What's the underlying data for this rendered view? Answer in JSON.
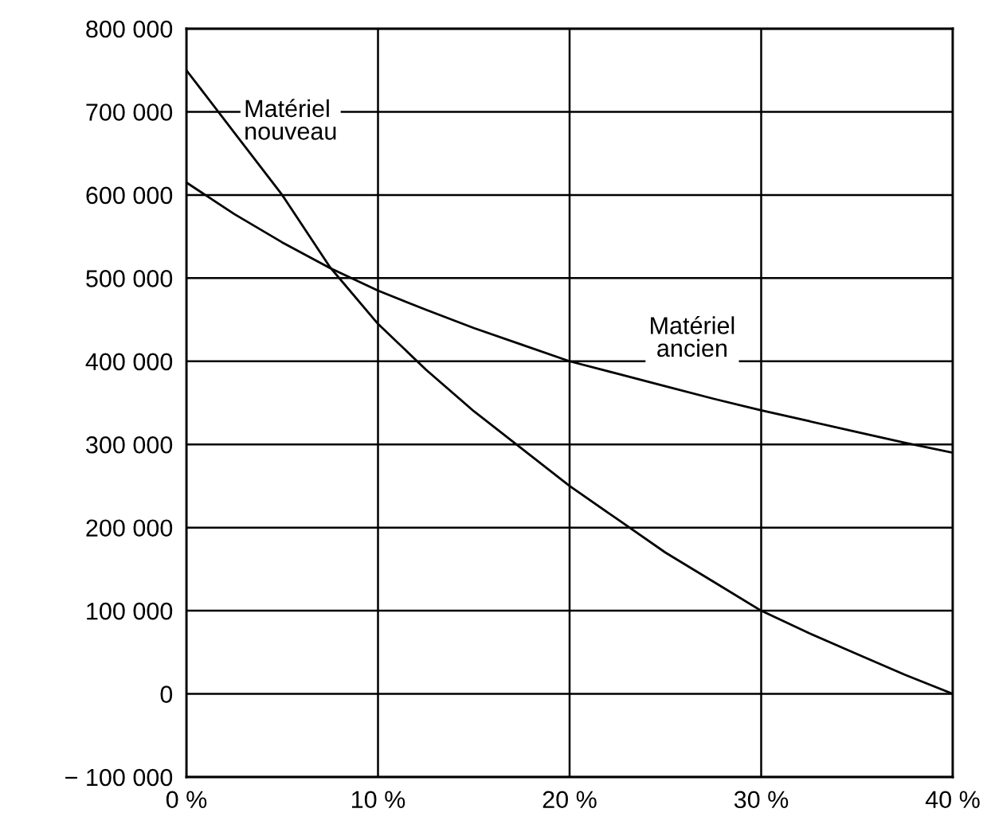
{
  "chart_data": {
    "type": "line",
    "x": [
      0,
      2.5,
      5,
      7.5,
      10,
      12.5,
      15,
      17.5,
      20,
      22.5,
      25,
      27.5,
      30,
      32.5,
      35,
      37.5,
      40
    ],
    "series": [
      {
        "name": "Matériel nouveau",
        "color": "#000000",
        "values": [
          750000,
          675000,
          600000,
          513000,
          445000,
          390000,
          340000,
          295000,
          250000,
          210000,
          170000,
          135000,
          100000,
          73000,
          48000,
          23000,
          0
        ]
      },
      {
        "name": "Matériel ancien",
        "color": "#000000",
        "values": [
          615000,
          577000,
          543000,
          512000,
          485000,
          462000,
          440000,
          420000,
          400000,
          385000,
          370000,
          355000,
          341000,
          328000,
          315000,
          302000,
          290000
        ]
      }
    ],
    "xlim": [
      0,
      40
    ],
    "xticks": [
      {
        "value": 0,
        "label": "0 %"
      },
      {
        "value": 10,
        "label": "10 %"
      },
      {
        "value": 20,
        "label": "20 %"
      },
      {
        "value": 30,
        "label": "30 %"
      },
      {
        "value": 40,
        "label": "40 %"
      }
    ],
    "ylim": [
      -100000,
      800000
    ],
    "yticks": [
      {
        "value": -100000,
        "label": "− 100 000"
      },
      {
        "value": 0,
        "label": "0"
      },
      {
        "value": 100000,
        "label": "100 000"
      },
      {
        "value": 200000,
        "label": "200 000"
      },
      {
        "value": 300000,
        "label": "300 000"
      },
      {
        "value": 400000,
        "label": "400 000"
      },
      {
        "value": 500000,
        "label": "500 000"
      },
      {
        "value": 600000,
        "label": "600 000"
      },
      {
        "value": 700000,
        "label": "700 000"
      },
      {
        "value": 800000,
        "label": "800 000"
      }
    ],
    "grid": true,
    "legend": false,
    "marker": "none",
    "line_style": "solid"
  }
}
